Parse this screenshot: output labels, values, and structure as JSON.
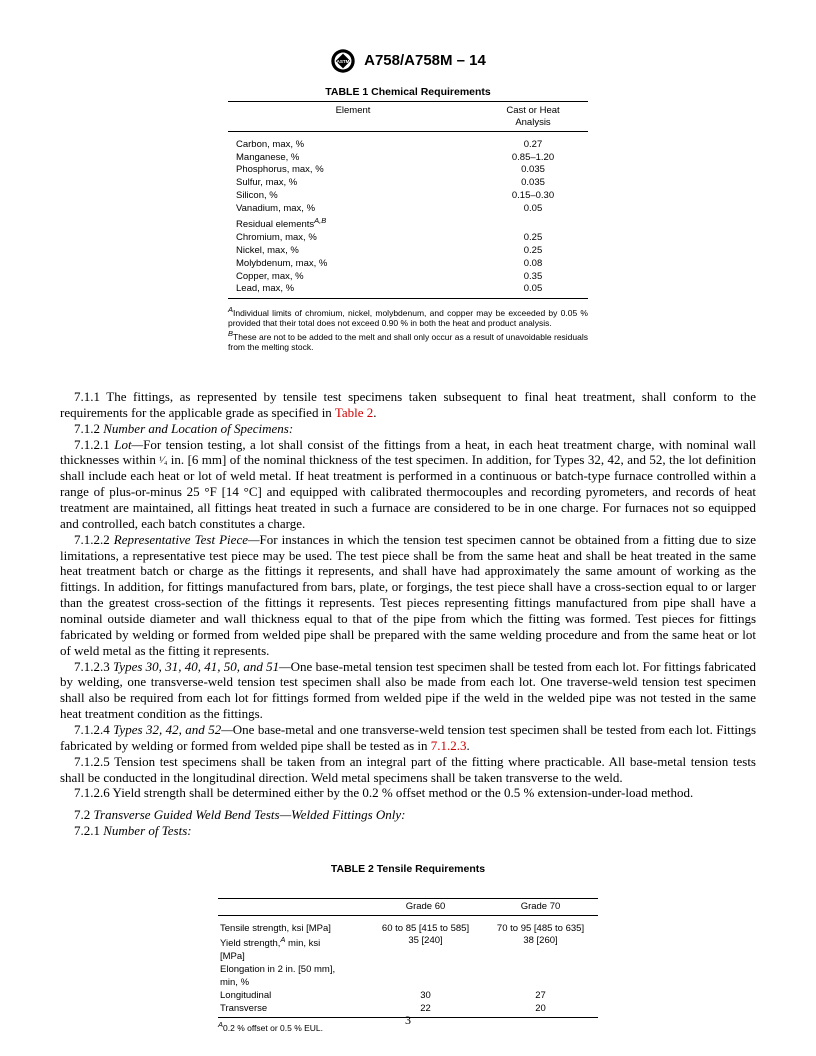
{
  "header": {
    "spec": "A758/A758M – 14",
    "logo_colors": {
      "outer": "#000000",
      "inner_bg": "#ffffff"
    }
  },
  "table1": {
    "title": "TABLE 1 Chemical Requirements",
    "head_c1": "Element",
    "head_c2a": "Cast or Heat",
    "head_c2b": "Analysis",
    "rows": [
      {
        "el": "Carbon, max, %",
        "val": "0.27"
      },
      {
        "el": "Manganese, %",
        "val": "0.85–1.20"
      },
      {
        "el": "Phosphorus, max, %",
        "val": "0.035"
      },
      {
        "el": "Sulfur, max, %",
        "val": "0.035"
      },
      {
        "el": "Silicon, %",
        "val": "0.15–0.30"
      },
      {
        "el": "Vanadium, max, %",
        "val": "0.05"
      },
      {
        "el": "Residual elements",
        "val": "",
        "sup": "A,B"
      },
      {
        "el": "Chromium, max, %",
        "val": "0.25"
      },
      {
        "el": "Nickel, max, %",
        "val": "0.25"
      },
      {
        "el": "Molybdenum, max, %",
        "val": "0.08"
      },
      {
        "el": "Copper, max, %",
        "val": "0.35"
      },
      {
        "el": "Lead, max, %",
        "val": "0.05"
      }
    ],
    "noteA_sup": "A",
    "noteA": "Individual limits of chromium, nickel, molybdenum, and copper may be exceeded by 0.05 % provided that their total does not exceed 0.90 % in both the heat and product analysis.",
    "noteB_sup": "B",
    "noteB": "These are not to be added to the melt and shall only occur as a result of unavoidable residuals from the melting stock."
  },
  "body": {
    "p1a": "7.1.1 The fittings, as represented by tensile test specimens taken subsequent to final heat treatment, shall conform to the requirements for the applicable grade as specified in ",
    "p1_ref": "Table 2",
    "p1b": ".",
    "p2_label": "7.1.2 ",
    "p2_ital": "Number and Location of Specimens:",
    "p3_label": "7.1.2.1 ",
    "p3_ital": "Lot—",
    "p3_pre": "For tension testing, a lot shall consist of the fittings from a heat, in each heat treatment charge, with nominal wall thicknesses within ",
    "p3_frac": "¹⁄₄",
    "p3_post": " in. [6 mm] of the nominal thickness of the test specimen. In addition, for Types 32, 42, and 52, the lot definition shall include each heat or lot of weld metal. If heat treatment is performed in a continuous or batch-type furnace controlled within a range of plus-or-minus 25 °F [14 °C] and equipped with calibrated thermocouples and recording pyrometers, and records of heat treatment are maintained, all fittings heat treated in such a furnace are considered to be in one charge. For furnaces not so equipped and controlled, each batch constitutes a charge.",
    "p4_label": "7.1.2.2 ",
    "p4_ital": "Representative Test Piece—",
    "p4_txt": "For instances in which the tension test specimen cannot be obtained from a fitting due to size limitations, a representative test piece may be used. The test piece shall be from the same heat and shall be heat treated in the same heat treatment batch or charge as the fittings it represents, and shall have had approximately the same amount of working as the fittings. In addition, for fittings manufactured from bars, plate, or forgings, the test piece shall have a cross-section equal to or larger than the greatest cross-section of the fittings it represents. Test pieces representing fittings manufactured from pipe shall have a nominal outside diameter and wall thickness equal to that of the pipe from which the fitting was formed. Test pieces for fittings fabricated by welding or formed from welded pipe shall be prepared with the same welding procedure and from the same heat or lot of weld metal as the fitting it represents.",
    "p5_label": "7.1.2.3 ",
    "p5_ital": "Types 30, 31, 40, 41, 50, and 51—",
    "p5_txt": "One base-metal tension test specimen shall be tested from each lot. For fittings fabricated by welding, one transverse-weld tension test specimen shall also be made from each lot. One traverse-weld tension test specimen shall also be required from each lot for fittings formed from welded pipe if the weld in the welded pipe was not tested in the same heat treatment condition as the fittings.",
    "p6_label": "7.1.2.4 ",
    "p6_ital": "Types 32, 42, and 52—",
    "p6a": "One base-metal and one transverse-weld tension test specimen shall be tested from each lot. Fittings fabricated by welding or formed from welded pipe shall be tested as in ",
    "p6_ref": "7.1.2.3",
    "p6b": ".",
    "p7": "7.1.2.5 Tension test specimens shall be taken from an integral part of the fitting where practicable. All base-metal tension tests shall be conducted in the longitudinal direction. Weld metal specimens shall be taken transverse to the weld.",
    "p8": "7.1.2.6 Yield strength shall be determined either by the 0.2 % offset method or the 0.5 % extension-under-load method.",
    "p9_label": "7.2 ",
    "p9_ital": "Transverse Guided Weld Bend Tests—Welded Fittings Only:",
    "p10_label": "7.2.1 ",
    "p10_ital": "Number of Tests:"
  },
  "table2": {
    "title": "TABLE 2 Tensile Requirements",
    "head_g60": "Grade 60",
    "head_g70": "Grade 70",
    "rows": [
      {
        "c1": "Tensile strength, ksi [MPa]",
        "c2": "60 to 85 [415 to 585]",
        "c3": "70 to 95 [485 to 635]"
      },
      {
        "c1_pre": "Yield strength,",
        "c1_sup": "A",
        "c1_post": " min, ksi",
        "c2": "35 [240]",
        "c3": "38 [260]"
      },
      {
        "c1": "[MPa]",
        "indent": true,
        "c2": "",
        "c3": ""
      },
      {
        "c1": "Elongation in 2 in. [50 mm],",
        "c2": "",
        "c3": ""
      },
      {
        "c1": "min, %",
        "indent": true,
        "c2": "",
        "c3": ""
      },
      {
        "c1": "Longitudinal",
        "indent": true,
        "c2": "30",
        "c3": "27"
      },
      {
        "c1": "Transverse",
        "indent": true,
        "c2": "22",
        "c3": "20"
      }
    ],
    "noteA_sup": "A",
    "noteA": "0.2 % offset or 0.5 % EUL."
  },
  "page_number": "3"
}
